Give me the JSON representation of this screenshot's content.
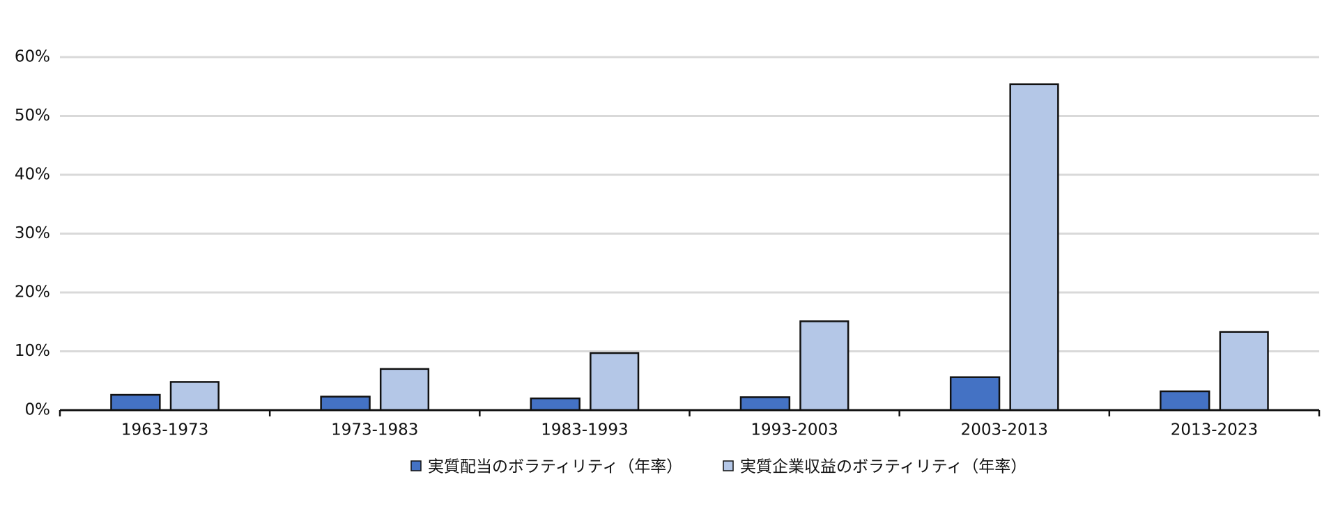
{
  "chart_data": {
    "type": "bar",
    "categories": [
      "1963-1973",
      "1973-1983",
      "1983-1993",
      "1993-2003",
      "2003-2013",
      "2013-2023"
    ],
    "series": [
      {
        "name": "実質配当のボラティリティ（年率）",
        "color": "#4472c4",
        "values": [
          2.6,
          2.3,
          2.0,
          2.2,
          5.6,
          3.2
        ]
      },
      {
        "name": "実質企業収益のボラティリティ（年率）",
        "color": "#b4c7e7",
        "values": [
          4.8,
          7.0,
          9.7,
          15.1,
          55.4,
          13.3
        ]
      }
    ],
    "ylim": [
      0,
      60
    ],
    "yticks": [
      {
        "value": 0,
        "label": "0%"
      },
      {
        "value": 10,
        "label": "10%"
      },
      {
        "value": 20,
        "label": "20%"
      },
      {
        "value": 30,
        "label": "30%"
      },
      {
        "value": 40,
        "label": "40%"
      },
      {
        "value": 50,
        "label": "50%"
      },
      {
        "value": 60,
        "label": "60%"
      }
    ],
    "grid": true,
    "legend": "bottom"
  }
}
